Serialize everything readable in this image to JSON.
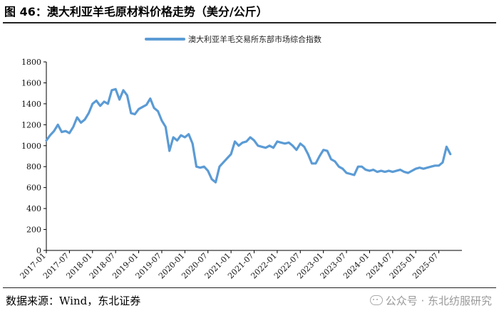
{
  "figure": {
    "title": "图 46：澳大利亚羊毛原材料价格走势（美分/公斤）",
    "source": "数据来源：Wind，东北证券",
    "watermark": "公众号 · 东北纺服研究"
  },
  "colors": {
    "line": "#5b9bd5",
    "axis": "#000000",
    "text": "#111111"
  },
  "chart_data": {
    "type": "line",
    "title": "",
    "xlabel": "",
    "ylabel": "",
    "legend_position": "top-center",
    "grid": false,
    "ylim": [
      0,
      1800
    ],
    "yticks": [
      0,
      200,
      400,
      600,
      800,
      1000,
      1200,
      1400,
      1600,
      1800
    ],
    "xtick_labels": [
      "2017-01",
      "2017-07",
      "2018-01",
      "2018-07",
      "2019-01",
      "2019-07",
      "2020-01",
      "2020-07",
      "2021-01",
      "2021-07",
      "2022-01",
      "2022-07",
      "2023-01",
      "2023-07",
      "2024-01",
      "2024-07",
      "2025-01",
      "2025-07"
    ],
    "series": [
      {
        "name": "澳大利亚羊毛交易所东部市场综合指数",
        "points": [
          [
            "2017-01",
            1050
          ],
          [
            "2017-02",
            1100
          ],
          [
            "2017-03",
            1140
          ],
          [
            "2017-04",
            1200
          ],
          [
            "2017-05",
            1130
          ],
          [
            "2017-06",
            1140
          ],
          [
            "2017-07",
            1120
          ],
          [
            "2017-08",
            1180
          ],
          [
            "2017-09",
            1270
          ],
          [
            "2017-10",
            1220
          ],
          [
            "2017-11",
            1250
          ],
          [
            "2017-12",
            1310
          ],
          [
            "2018-01",
            1400
          ],
          [
            "2018-02",
            1430
          ],
          [
            "2018-03",
            1380
          ],
          [
            "2018-04",
            1420
          ],
          [
            "2018-05",
            1400
          ],
          [
            "2018-06",
            1530
          ],
          [
            "2018-07",
            1540
          ],
          [
            "2018-08",
            1440
          ],
          [
            "2018-09",
            1530
          ],
          [
            "2018-10",
            1480
          ],
          [
            "2018-11",
            1310
          ],
          [
            "2018-12",
            1300
          ],
          [
            "2019-01",
            1350
          ],
          [
            "2019-02",
            1370
          ],
          [
            "2019-03",
            1390
          ],
          [
            "2019-04",
            1450
          ],
          [
            "2019-05",
            1360
          ],
          [
            "2019-06",
            1330
          ],
          [
            "2019-07",
            1240
          ],
          [
            "2019-08",
            1180
          ],
          [
            "2019-09",
            950
          ],
          [
            "2019-10",
            1080
          ],
          [
            "2019-11",
            1050
          ],
          [
            "2019-12",
            1100
          ],
          [
            "2020-01",
            1080
          ],
          [
            "2020-02",
            1110
          ],
          [
            "2020-03",
            1020
          ],
          [
            "2020-04",
            800
          ],
          [
            "2020-05",
            790
          ],
          [
            "2020-06",
            800
          ],
          [
            "2020-07",
            760
          ],
          [
            "2020-08",
            680
          ],
          [
            "2020-09",
            650
          ],
          [
            "2020-10",
            800
          ],
          [
            "2020-11",
            840
          ],
          [
            "2020-12",
            880
          ],
          [
            "2021-01",
            920
          ],
          [
            "2021-02",
            1040
          ],
          [
            "2021-03",
            1000
          ],
          [
            "2021-04",
            1030
          ],
          [
            "2021-05",
            1040
          ],
          [
            "2021-06",
            1080
          ],
          [
            "2021-07",
            1050
          ],
          [
            "2021-08",
            1000
          ],
          [
            "2021-09",
            990
          ],
          [
            "2021-10",
            980
          ],
          [
            "2021-11",
            1000
          ],
          [
            "2021-12",
            980
          ],
          [
            "2022-01",
            1040
          ],
          [
            "2022-02",
            1030
          ],
          [
            "2022-03",
            1020
          ],
          [
            "2022-04",
            1030
          ],
          [
            "2022-05",
            1000
          ],
          [
            "2022-06",
            960
          ],
          [
            "2022-07",
            1020
          ],
          [
            "2022-08",
            990
          ],
          [
            "2022-09",
            920
          ],
          [
            "2022-10",
            830
          ],
          [
            "2022-11",
            830
          ],
          [
            "2022-12",
            900
          ],
          [
            "2023-01",
            960
          ],
          [
            "2023-02",
            950
          ],
          [
            "2023-03",
            870
          ],
          [
            "2023-04",
            850
          ],
          [
            "2023-05",
            800
          ],
          [
            "2023-06",
            780
          ],
          [
            "2023-07",
            740
          ],
          [
            "2023-08",
            730
          ],
          [
            "2023-09",
            720
          ],
          [
            "2023-10",
            800
          ],
          [
            "2023-11",
            800
          ],
          [
            "2023-12",
            770
          ],
          [
            "2024-01",
            760
          ],
          [
            "2024-02",
            770
          ],
          [
            "2024-03",
            750
          ],
          [
            "2024-04",
            760
          ],
          [
            "2024-05",
            750
          ],
          [
            "2024-06",
            760
          ],
          [
            "2024-07",
            750
          ],
          [
            "2024-08",
            760
          ],
          [
            "2024-09",
            770
          ],
          [
            "2024-10",
            750
          ],
          [
            "2024-11",
            740
          ],
          [
            "2024-12",
            760
          ],
          [
            "2025-01",
            780
          ],
          [
            "2025-02",
            790
          ],
          [
            "2025-03",
            780
          ],
          [
            "2025-04",
            790
          ],
          [
            "2025-05",
            800
          ],
          [
            "2025-06",
            810
          ],
          [
            "2025-07",
            810
          ],
          [
            "2025-08",
            840
          ],
          [
            "2025-09",
            990
          ],
          [
            "2025-10",
            920
          ]
        ]
      }
    ]
  }
}
